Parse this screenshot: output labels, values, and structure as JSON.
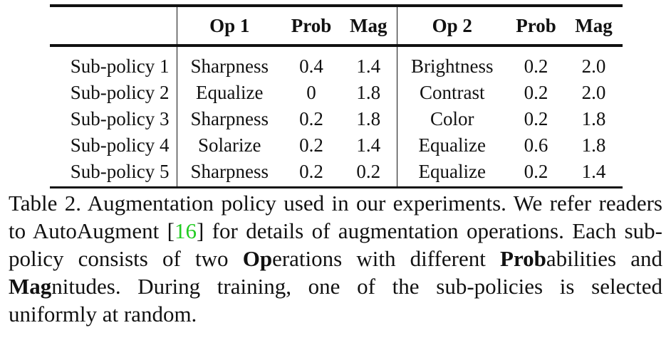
{
  "table": {
    "header": [
      "Op 1",
      "Prob",
      "Mag",
      "Op 2",
      "Prob",
      "Mag"
    ],
    "rows": [
      [
        "Sub-policy 1",
        "Sharpness",
        "0.4",
        "1.4",
        "Brightness",
        "0.2",
        "2.0"
      ],
      [
        "Sub-policy 2",
        "Equalize",
        "0",
        "1.8",
        "Contrast",
        "0.2",
        "2.0"
      ],
      [
        "Sub-policy 3",
        "Sharpness",
        "0.2",
        "1.8",
        "Color",
        "0.2",
        "1.8"
      ],
      [
        "Sub-policy 4",
        "Solarize",
        "0.2",
        "1.4",
        "Equalize",
        "0.6",
        "1.8"
      ],
      [
        "Sub-policy 5",
        "Sharpness",
        "0.2",
        "0.2",
        "Equalize",
        "0.2",
        "1.4"
      ]
    ]
  },
  "caption": {
    "parts": [
      "Table 2. Augmentation policy used in our experiments. We refer readers to AutoAugment [",
      "16",
      "] for details of augmentation operations. Each sub-policy consists of two ",
      "Op",
      "erations with different ",
      "Prob",
      "abilities and ",
      "Mag",
      "nitudes. During training, one of the sub-policies is selected uniformly at random."
    ]
  }
}
